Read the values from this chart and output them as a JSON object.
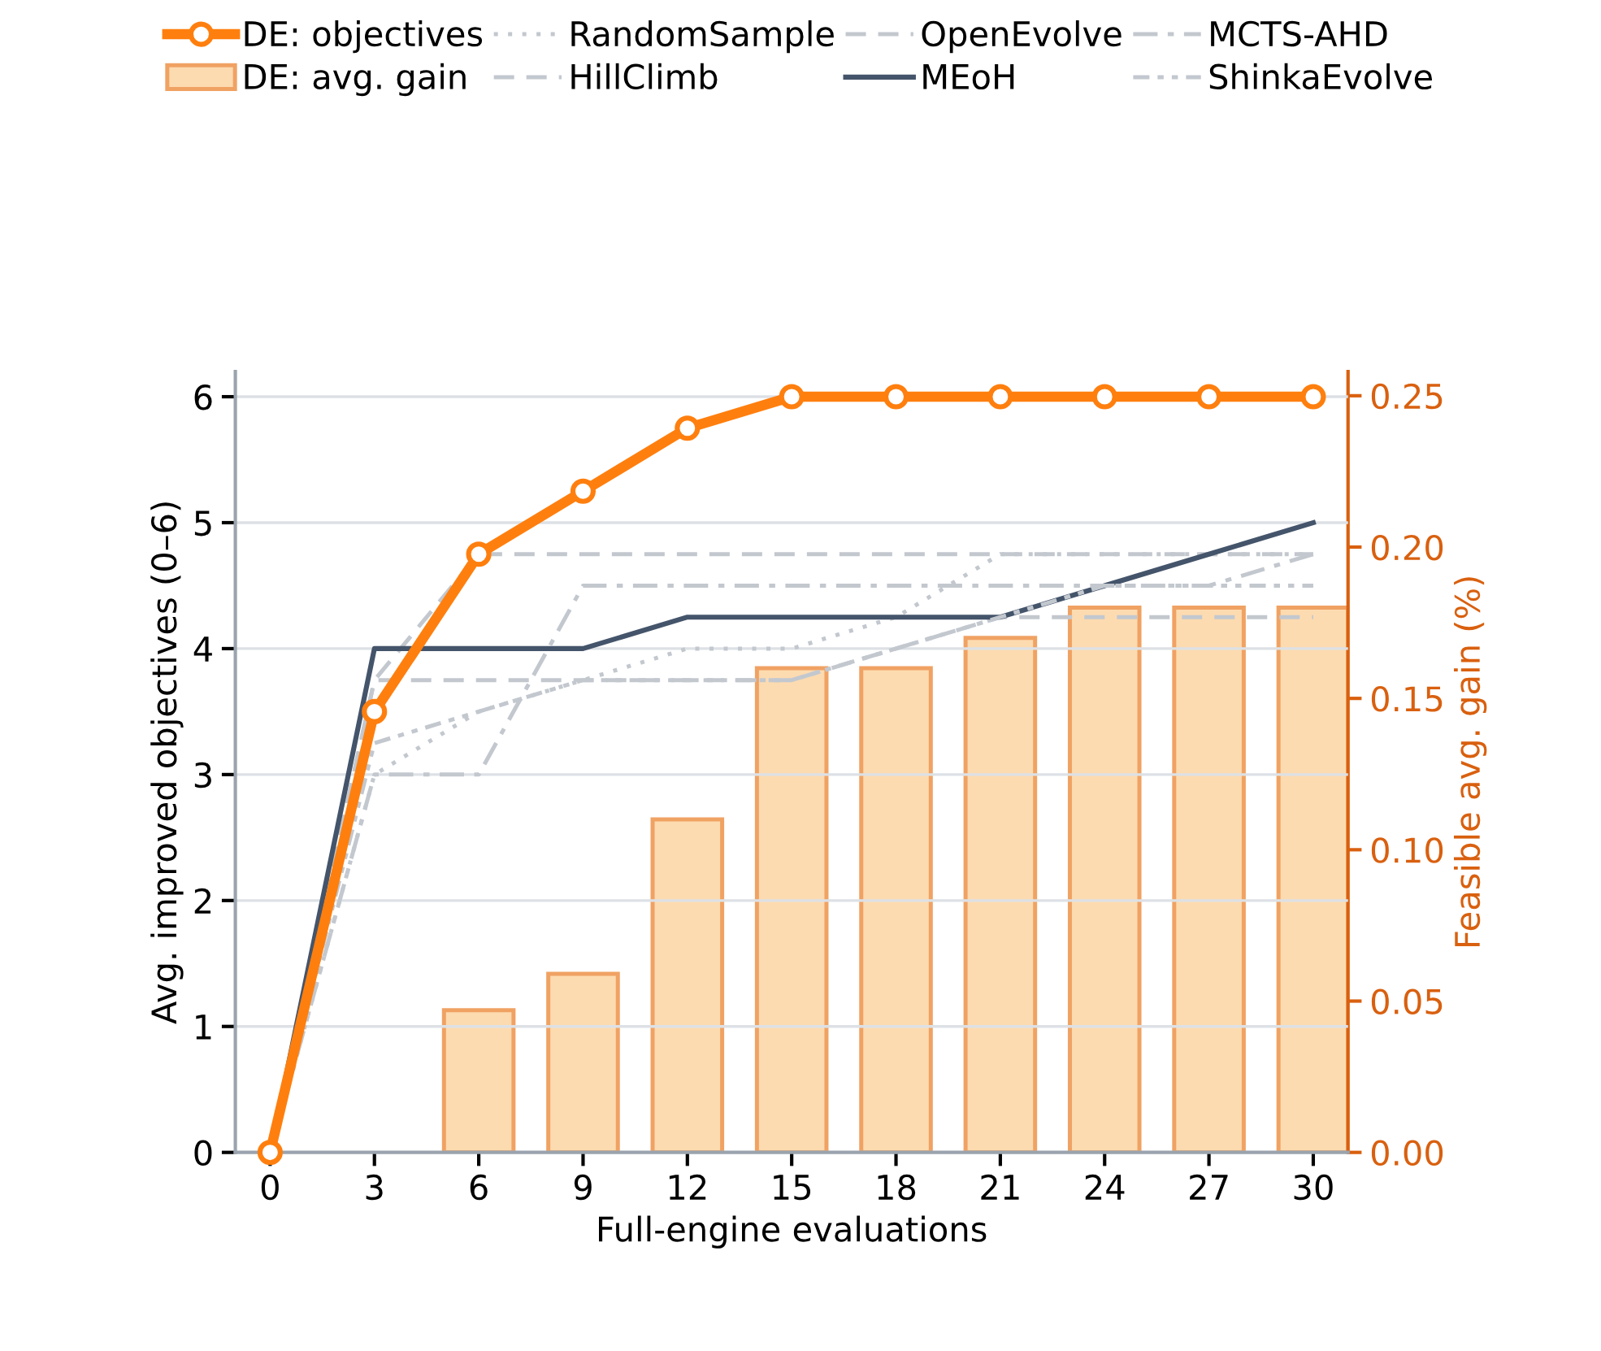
{
  "chart_data": {
    "type": "line",
    "xlabel": "Full-engine evaluations",
    "ylabel": "Avg. improved objectives (0–6)",
    "y2label": "Feasible avg. gain (%)",
    "x": [
      0,
      3,
      6,
      9,
      12,
      15,
      18,
      21,
      24,
      27,
      30
    ],
    "series": [
      {
        "name": "DE: objectives",
        "color": "#ff7f0e",
        "marker": "circle",
        "line_style": "solid",
        "values": [
          0,
          3.5,
          4.75,
          5.25,
          5.75,
          6,
          6,
          6,
          6,
          6,
          6
        ]
      },
      {
        "name": "DE: avg. gain",
        "type": "bar",
        "axis": "y2",
        "color": "#fddbb0",
        "values": [
          null,
          null,
          0.047,
          0.059,
          0.11,
          0.16,
          0.16,
          0.17,
          0.18,
          0.18,
          0.18
        ]
      },
      {
        "name": "RandomSample",
        "color": "#c3c8cf",
        "line_style": "dotted",
        "values": [
          0,
          3.0,
          3.5,
          3.75,
          4.0,
          4.0,
          4.25,
          4.75,
          4.75,
          4.75,
          4.75
        ]
      },
      {
        "name": "HillClimb",
        "color": "#c3c8cf",
        "line_style": "dashed",
        "values": [
          0,
          3.75,
          4.75,
          4.75,
          4.75,
          4.75,
          4.75,
          4.75,
          4.75,
          4.75,
          4.75
        ]
      },
      {
        "name": "OpenEvolve",
        "color": "#c3c8cf",
        "line_style": "dashed",
        "values": [
          0,
          3.75,
          3.75,
          3.75,
          3.75,
          3.75,
          4.0,
          4.25,
          4.25,
          4.25,
          4.25
        ]
      },
      {
        "name": "MEoH",
        "color": "#44546a",
        "line_style": "solid",
        "values": [
          0,
          4,
          4,
          4,
          4.25,
          4.25,
          4.25,
          4.25,
          4.5,
          4.75,
          5
        ]
      },
      {
        "name": "MCTS-AHD",
        "color": "#c3c8cf",
        "line_style": "dashdot",
        "values": [
          0,
          3.0,
          3.0,
          4.5,
          4.5,
          4.5,
          4.5,
          4.5,
          4.5,
          4.5,
          4.75
        ]
      },
      {
        "name": "ShinkaEvolve",
        "color": "#c3c8cf",
        "line_style": "dashdotdot",
        "values": [
          0,
          3.25,
          3.5,
          3.75,
          3.75,
          3.75,
          4.0,
          4.25,
          4.5,
          4.5,
          4.5
        ]
      }
    ],
    "xlim": [
      -1,
      31
    ],
    "xticks": [
      0,
      3,
      6,
      9,
      12,
      15,
      18,
      21,
      24,
      27,
      30
    ],
    "ylim": [
      0,
      6.2
    ],
    "yticks": [
      0,
      1,
      2,
      3,
      4,
      5,
      6
    ],
    "y2lim": [
      0,
      0.258
    ],
    "y2ticks": [
      {
        "value": 0,
        "label": "0.00"
      },
      {
        "value": 0.05,
        "label": "0.05"
      },
      {
        "value": 0.1,
        "label": "0.10"
      },
      {
        "value": 0.15,
        "label": "0.15"
      },
      {
        "value": 0.2,
        "label": "0.20"
      },
      {
        "value": 0.25,
        "label": "0.25"
      }
    ],
    "grid": "y",
    "legend": "top"
  }
}
